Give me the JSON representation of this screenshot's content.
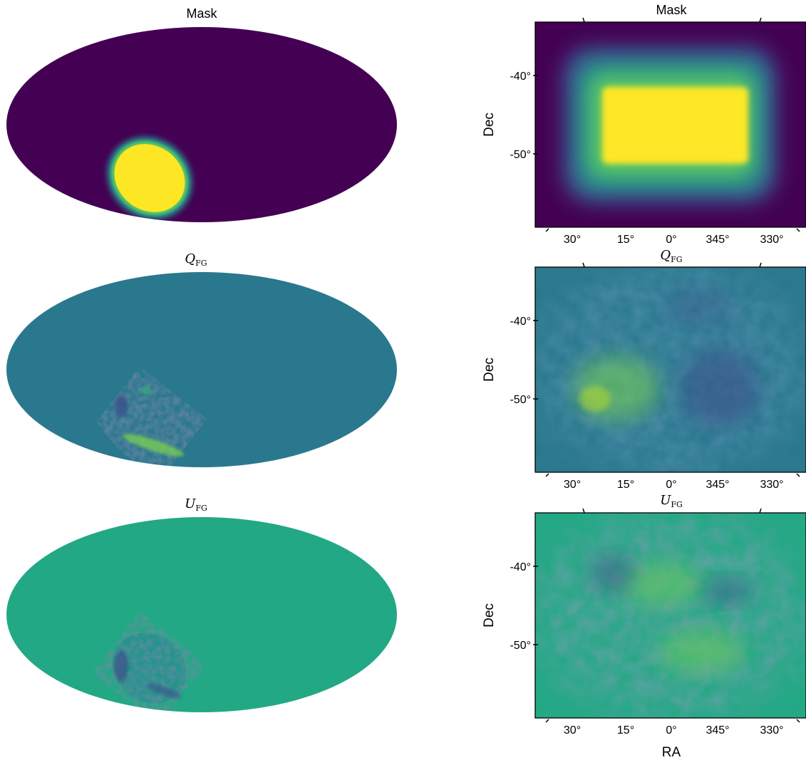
{
  "figure": {
    "left_panels": [
      {
        "title": "Mask",
        "title_style": "sans",
        "kind": "mask"
      },
      {
        "title": "Q",
        "title_sub": "FG",
        "title_style": "math",
        "kind": "q"
      },
      {
        "title": "U",
        "title_sub": "FG",
        "title_style": "math",
        "kind": "u"
      }
    ],
    "right_panels": [
      {
        "title": "Mask",
        "title_style": "sans",
        "kind": "mask",
        "ylabel": "Dec"
      },
      {
        "title": "Q",
        "title_sub": "FG",
        "title_style": "math",
        "kind": "q",
        "ylabel": "Dec"
      },
      {
        "title": "U",
        "title_sub": "FG",
        "title_style": "math",
        "kind": "u",
        "ylabel": "Dec"
      }
    ],
    "xlabel": "RA"
  },
  "colors": {
    "viridis_min": "#440154",
    "viridis_mid": "#21908d",
    "viridis_max": "#fde725",
    "q_background": "#2a788e",
    "u_background": "#22a884"
  },
  "chart_data": [
    {
      "type": "heatmap",
      "projection": "mollweide",
      "title": "Mask",
      "colormap": "viridis",
      "description_values": {
        "background": 0,
        "patch": 1
      }
    },
    {
      "type": "heatmap",
      "projection": "mollweide",
      "title": "Q_FG",
      "colormap": "viridis"
    },
    {
      "type": "heatmap",
      "projection": "mollweide",
      "title": "U_FG",
      "colormap": "viridis"
    },
    {
      "type": "heatmap",
      "projection": "cartesian",
      "title": "Mask",
      "colormap": "viridis",
      "xlabel": "",
      "ylabel": "Dec",
      "x_ticks": [
        "30°",
        "15°",
        "0°",
        "345°",
        "330°"
      ],
      "y_ticks": [
        "-40°",
        "-50°"
      ],
      "ra_range_deg": [
        40,
        -40
      ],
      "dec_range_deg": [
        -33,
        -60
      ]
    },
    {
      "type": "heatmap",
      "projection": "cartesian",
      "title": "Q_FG",
      "colormap": "viridis",
      "xlabel": "",
      "ylabel": "Dec",
      "x_ticks": [
        "30°",
        "15°",
        "0°",
        "345°",
        "330°"
      ],
      "y_ticks": [
        "-40°",
        "-50°"
      ]
    },
    {
      "type": "heatmap",
      "projection": "cartesian",
      "title": "U_FG",
      "colormap": "viridis",
      "xlabel": "RA",
      "ylabel": "Dec",
      "x_ticks": [
        "30°",
        "15°",
        "0°",
        "345°",
        "330°"
      ],
      "y_ticks": [
        "-40°",
        "-50°"
      ]
    }
  ]
}
